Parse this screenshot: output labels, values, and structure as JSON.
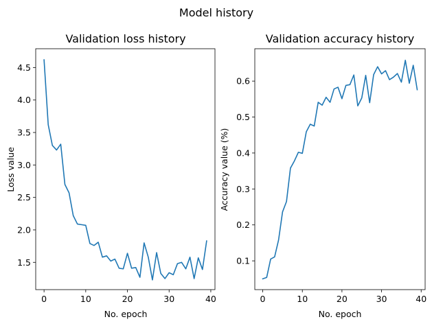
{
  "suptitle": "Model history",
  "colors": {
    "series": "#1f77b4"
  },
  "chart_data": [
    {
      "type": "line",
      "title": "Validation loss history",
      "xlabel": "No. epoch",
      "ylabel": "Loss value",
      "xlim": [
        -2,
        41
      ],
      "ylim": [
        1.08,
        4.79
      ],
      "xticks": [
        0,
        10,
        20,
        30,
        40
      ],
      "xtick_labels": [
        "0",
        "10",
        "20",
        "30",
        "40"
      ],
      "yticks": [
        1.5,
        2.0,
        2.5,
        3.0,
        3.5,
        4.0,
        4.5
      ],
      "ytick_labels": [
        "1.5",
        "2.0",
        "2.5",
        "3.0",
        "3.5",
        "4.0",
        "4.5"
      ],
      "grid": false,
      "x": [
        0,
        1,
        2,
        3,
        4,
        5,
        6,
        7,
        8,
        9,
        10,
        11,
        12,
        13,
        14,
        15,
        16,
        17,
        18,
        19,
        20,
        21,
        22,
        23,
        24,
        25,
        26,
        27,
        28,
        29,
        30,
        31,
        32,
        33,
        34,
        35,
        36,
        37,
        38,
        39
      ],
      "series": [
        {
          "values": [
            4.62,
            3.62,
            3.3,
            3.23,
            3.32,
            2.7,
            2.57,
            2.22,
            2.09,
            2.08,
            2.07,
            1.79,
            1.76,
            1.81,
            1.58,
            1.6,
            1.52,
            1.55,
            1.41,
            1.4,
            1.64,
            1.41,
            1.42,
            1.27,
            1.8,
            1.58,
            1.23,
            1.65,
            1.33,
            1.25,
            1.34,
            1.31,
            1.48,
            1.5,
            1.4,
            1.58,
            1.25,
            1.57,
            1.39,
            1.83
          ]
        }
      ]
    },
    {
      "type": "line",
      "title": "Validation accuracy history",
      "xlabel": "No. epoch",
      "ylabel": "Accuracy value (%)",
      "xlim": [
        -2,
        41
      ],
      "ylim": [
        0.02,
        0.69
      ],
      "xticks": [
        0,
        10,
        20,
        30,
        40
      ],
      "xtick_labels": [
        "0",
        "10",
        "20",
        "30",
        "40"
      ],
      "yticks": [
        0.1,
        0.2,
        0.3,
        0.4,
        0.5,
        0.6
      ],
      "ytick_labels": [
        "0.1",
        "0.2",
        "0.3",
        "0.4",
        "0.5",
        "0.6"
      ],
      "grid": false,
      "x": [
        0,
        1,
        2,
        3,
        4,
        5,
        6,
        7,
        8,
        9,
        10,
        11,
        12,
        13,
        14,
        15,
        16,
        17,
        18,
        19,
        20,
        21,
        22,
        23,
        24,
        25,
        26,
        27,
        28,
        29,
        30,
        31,
        32,
        33,
        34,
        35,
        36,
        37,
        38,
        39
      ],
      "series": [
        {
          "values": [
            0.05,
            0.054,
            0.105,
            0.111,
            0.158,
            0.236,
            0.265,
            0.358,
            0.378,
            0.402,
            0.399,
            0.459,
            0.48,
            0.475,
            0.541,
            0.533,
            0.555,
            0.541,
            0.578,
            0.583,
            0.551,
            0.588,
            0.59,
            0.617,
            0.531,
            0.553,
            0.616,
            0.54,
            0.618,
            0.64,
            0.62,
            0.629,
            0.604,
            0.611,
            0.621,
            0.597,
            0.658,
            0.594,
            0.644,
            0.576
          ]
        }
      ]
    }
  ]
}
